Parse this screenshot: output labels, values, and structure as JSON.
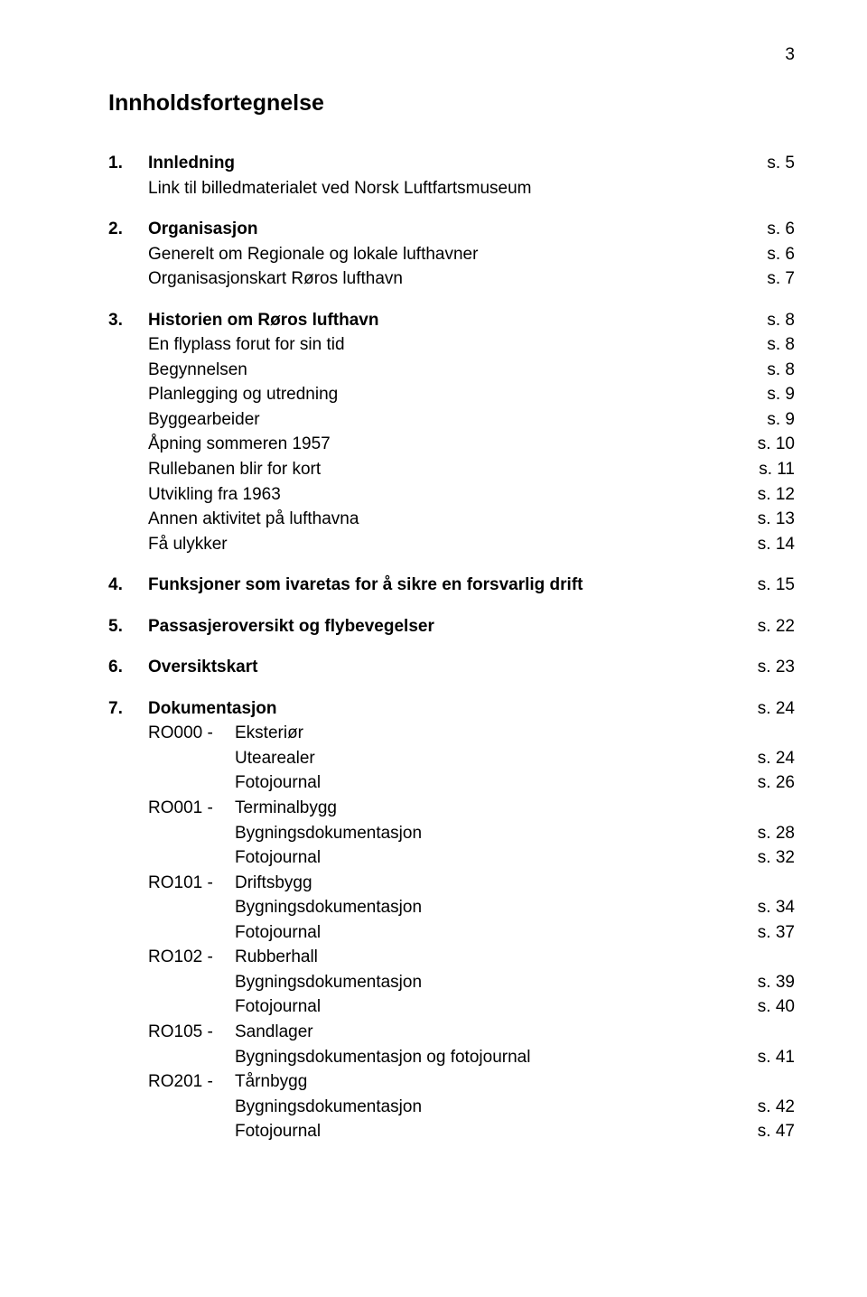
{
  "page_number_top": "3",
  "title": "Innholdsfortegnelse",
  "sections": {
    "s1": {
      "num": "1.",
      "label": "Innledning",
      "page": "s.   5",
      "sub": [
        {
          "label": "Link til billedmaterialet ved Norsk Luftfartsmuseum",
          "page": ""
        }
      ]
    },
    "s2": {
      "num": "2.",
      "label": "Organisasjon",
      "page": "s.   6",
      "sub": [
        {
          "label": "Generelt om Regionale og lokale lufthavner",
          "page": "s.   6"
        },
        {
          "label": "Organisasjonskart Røros lufthavn",
          "page": "s.   7"
        }
      ]
    },
    "s3": {
      "num": "3.",
      "label": "Historien om Røros lufthavn",
      "page": "s.   8",
      "sub": [
        {
          "label": "En flyplass forut for sin tid",
          "page": "s.   8"
        },
        {
          "label": "Begynnelsen",
          "page": "s.   8"
        },
        {
          "label": "Planlegging og utredning",
          "page": "s.   9"
        },
        {
          "label": "Byggearbeider",
          "page": "s.   9"
        },
        {
          "label": "Åpning sommeren 1957",
          "page": "s. 10"
        },
        {
          "label": "Rullebanen blir for kort",
          "page": "s. 11"
        },
        {
          "label": "Utvikling fra 1963",
          "page": "s. 12"
        },
        {
          "label": "Annen aktivitet på lufthavna",
          "page": "s. 13"
        },
        {
          "label": "Få ulykker",
          "page": "s. 14"
        }
      ]
    },
    "s4": {
      "num": "4.",
      "label": "Funksjoner som ivaretas for å sikre en forsvarlig drift",
      "page": "s. 15"
    },
    "s5": {
      "num": "5.",
      "label": "Passasjeroversikt og flybevegelser",
      "page": "s. 22"
    },
    "s6": {
      "num": "6.",
      "label": "Oversiktskart",
      "page": "s. 23"
    },
    "s7": {
      "num": "7.",
      "label": "Dokumentasjon",
      "page": "s. 24",
      "groups": [
        {
          "ro": "RO000  -",
          "header": "Eksteriør",
          "items": [
            {
              "label": "Utearealer",
              "page": "s. 24"
            },
            {
              "label": "Fotojournal",
              "page": "s. 26"
            }
          ]
        },
        {
          "ro": "RO001 -",
          "header": "Terminalbygg",
          "items": [
            {
              "label": "Bygningsdokumentasjon",
              "page": "s. 28"
            },
            {
              "label": "Fotojournal",
              "page": "s. 32"
            }
          ]
        },
        {
          "ro": "RO101 -",
          "header": "Driftsbygg",
          "items": [
            {
              "label": "Bygningsdokumentasjon",
              "page": "s. 34"
            },
            {
              "label": "Fotojournal",
              "page": "s. 37"
            }
          ]
        },
        {
          "ro": "RO102 -",
          "header": "Rubberhall",
          "items": [
            {
              "label": "Bygningsdokumentasjon",
              "page": "s. 39"
            },
            {
              "label": "Fotojournal",
              "page": "s. 40"
            }
          ]
        },
        {
          "ro": "RO105 -",
          "header": "Sandlager",
          "items": [
            {
              "label": "Bygningsdokumentasjon og fotojournal",
              "page": "s. 41"
            }
          ]
        },
        {
          "ro": "RO201 -",
          "header": "Tårnbygg",
          "items": [
            {
              "label": "Bygningsdokumentasjon",
              "page": "s. 42"
            },
            {
              "label": "Fotojournal",
              "page": "s. 47"
            }
          ]
        }
      ]
    }
  }
}
